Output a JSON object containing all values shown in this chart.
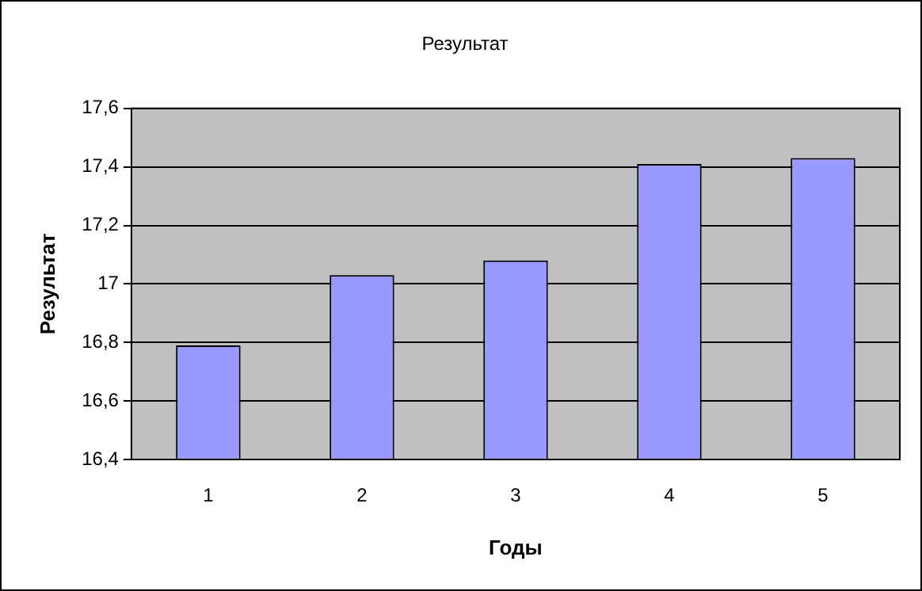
{
  "chart_data": {
    "type": "bar",
    "title": "Результат",
    "xlabel": "Годы",
    "ylabel": "Результат",
    "categories": [
      "1",
      "2",
      "3",
      "4",
      "5"
    ],
    "values": [
      16.79,
      17.03,
      17.08,
      17.41,
      17.43
    ],
    "color": "#9999ff",
    "ylim": [
      16.4,
      17.6
    ],
    "yticks": [
      {
        "value": 16.4,
        "label": "16,4"
      },
      {
        "value": 16.6,
        "label": "16,6"
      },
      {
        "value": 16.8,
        "label": "16,8"
      },
      {
        "value": 17,
        "label": "17"
      },
      {
        "value": 17.2,
        "label": "17,2"
      },
      {
        "value": 17.4,
        "label": "17,4"
      },
      {
        "value": 17.6,
        "label": "17,6"
      }
    ],
    "grid": "y",
    "legend": false
  }
}
